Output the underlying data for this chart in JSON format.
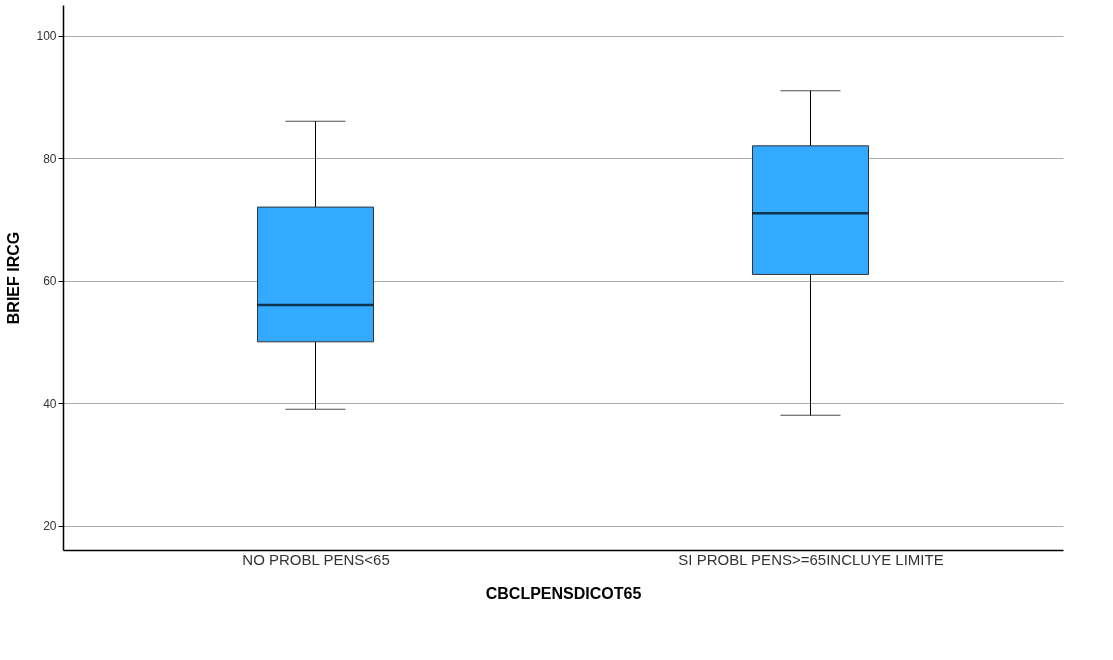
{
  "chart_data": {
    "type": "box",
    "xlabel": "CBCLPENSDICOT65",
    "ylabel": "BRIEF IRCG",
    "categories": [
      "NO PROBL PENS<65",
      "SI PROBL PENS>=65INCLUYE LIMITE"
    ],
    "boxes": [
      {
        "low": 39,
        "q1": 50,
        "median": 56,
        "q3": 72,
        "high": 86
      },
      {
        "low": 38,
        "q1": 61,
        "median": 71,
        "q3": 82,
        "high": 91
      }
    ],
    "color": "#33aaff",
    "ylim": [
      16,
      105
    ],
    "yticks": [
      20,
      40,
      60,
      80,
      100
    ],
    "grid": "y"
  }
}
